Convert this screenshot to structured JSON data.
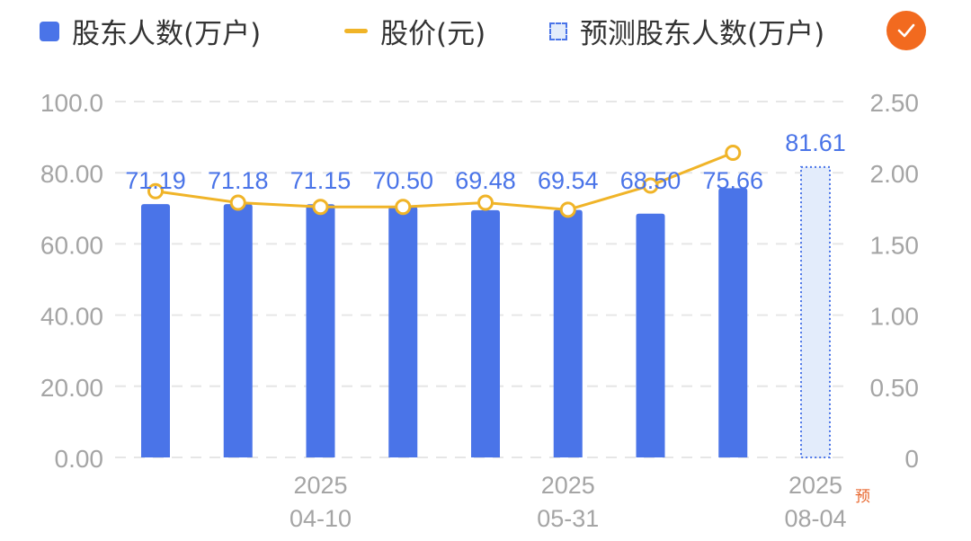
{
  "legend": {
    "bar_label": "股东人数(万户)",
    "line_label": "股价(元)",
    "forecast_label": "预测股东人数(万户)"
  },
  "colors": {
    "bar": "#4a74e8",
    "line": "#f0b428",
    "forecast_fill": "#e3ecfb",
    "confirm": "#f26a1f",
    "grid": "#e6e6e6",
    "tick": "#a5a5a5",
    "label": "#4a74e8"
  },
  "icons": {
    "confirm": "check-icon"
  },
  "forecast_mark": "预",
  "chart_data": {
    "type": "bar",
    "left_axis": {
      "range": [
        0,
        100
      ],
      "ticks": [
        "0.00",
        "20.00",
        "40.00",
        "60.00",
        "80.00",
        "100.0"
      ]
    },
    "right_axis": {
      "range": [
        0,
        2.5
      ],
      "ticks": [
        "0",
        "0.50",
        "1.00",
        "1.50",
        "2.00",
        "2.50"
      ]
    },
    "grid": true,
    "x_labels": [
      {
        "index": 2,
        "year": "2025",
        "date": "04-10"
      },
      {
        "index": 5,
        "year": "2025",
        "date": "05-31"
      },
      {
        "index": 8,
        "year": "2025",
        "date": "08-04"
      }
    ],
    "series": [
      {
        "name": "股东人数(万户)",
        "type": "bar",
        "values": [
          71.19,
          71.18,
          71.15,
          70.5,
          69.48,
          69.54,
          68.5,
          75.66
        ]
      },
      {
        "name": "股价(元)",
        "type": "line",
        "values": [
          1.87,
          1.79,
          1.76,
          1.76,
          1.79,
          1.74,
          1.91,
          2.14
        ]
      },
      {
        "name": "预测股东人数(万户)",
        "type": "forecast-bar",
        "index": 8,
        "values": [
          81.61
        ]
      }
    ]
  }
}
